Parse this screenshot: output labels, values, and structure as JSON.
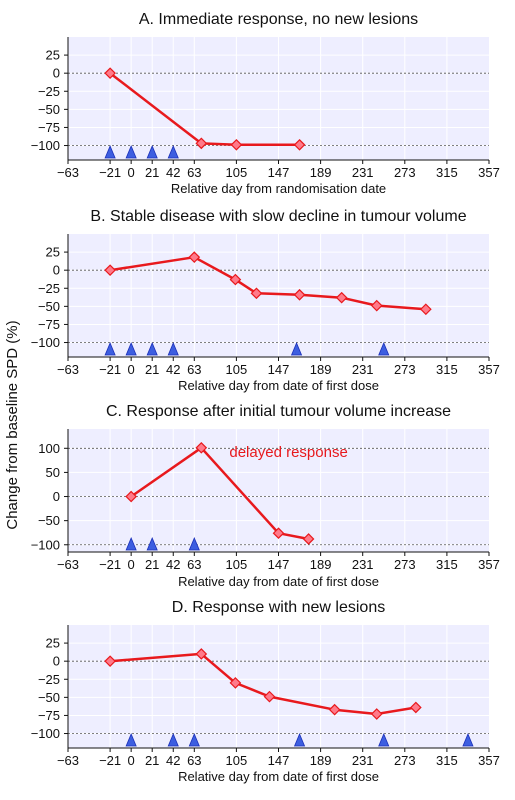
{
  "figure": {
    "ylabel": "Change from baseline SPD (%)",
    "colors": {
      "background": "#eeeeff",
      "grid": "#ffffff",
      "line": "#e8191d",
      "marker_fill": "#ff7a8a",
      "marker_edge": "#e8191d",
      "triangle_fill": "#3d5ee0",
      "triangle_edge": "#1b2fb8",
      "reference": "#555555",
      "annotation": "#e8191d"
    }
  },
  "chart_data": [
    {
      "type": "line",
      "title": "A. Immediate response, no new lesions",
      "xlabel": "Relative day from randomisation date",
      "ylabel": "",
      "xlim": [
        -63,
        357
      ],
      "ylim": [
        -120,
        50
      ],
      "xticks": [
        -63,
        -21,
        0,
        21,
        42,
        63,
        105,
        147,
        189,
        231,
        273,
        315,
        357
      ],
      "yticks": [
        25,
        0,
        -25,
        -50,
        -75,
        -100
      ],
      "reference_lines": [
        0,
        -100
      ],
      "series": [
        {
          "x": [
            -21,
            70,
            105,
            168
          ],
          "y": [
            0,
            -97,
            -99,
            -99
          ]
        }
      ],
      "triangles": [
        -21,
        0,
        21,
        42
      ],
      "annotations": []
    },
    {
      "type": "line",
      "title": "B. Stable disease with slow decline in tumour volume",
      "xlabel": "Relative day from date of first dose",
      "ylabel": "",
      "xlim": [
        -63,
        357
      ],
      "ylim": [
        -120,
        50
      ],
      "xticks": [
        -63,
        -21,
        0,
        21,
        42,
        63,
        105,
        147,
        189,
        231,
        273,
        315,
        357
      ],
      "yticks": [
        25,
        0,
        -25,
        -50,
        -75,
        -100
      ],
      "reference_lines": [
        0,
        -100
      ],
      "series": [
        {
          "x": [
            -21,
            63,
            104,
            125,
            168,
            210,
            245,
            294
          ],
          "y": [
            0,
            18,
            -13,
            -32,
            -34,
            -38,
            -49,
            -54
          ]
        }
      ],
      "triangles": [
        -21,
        0,
        21,
        42,
        165,
        252
      ],
      "annotations": []
    },
    {
      "type": "line",
      "title": "C. Response after initial tumour volume increase",
      "xlabel": "Relative day from date of first dose",
      "ylabel": "",
      "xlim": [
        -63,
        357
      ],
      "ylim": [
        -115,
        140
      ],
      "xticks": [
        -63,
        -21,
        0,
        21,
        42,
        63,
        105,
        147,
        189,
        231,
        273,
        315,
        357
      ],
      "yticks": [
        100,
        50,
        0,
        -50,
        -100
      ],
      "reference_lines": [
        100,
        0,
        -100
      ],
      "series": [
        {
          "x": [
            0,
            70,
            147,
            177
          ],
          "y": [
            0,
            101,
            -76,
            -88
          ]
        }
      ],
      "triangles": [
        0,
        21,
        63
      ],
      "annotations": [
        {
          "text": "delayed response",
          "x": 98,
          "y": 82
        }
      ]
    },
    {
      "type": "line",
      "title": "D. Response with new lesions",
      "xlabel": "Relative day from date of first dose",
      "ylabel": "",
      "xlim": [
        -63,
        357
      ],
      "ylim": [
        -120,
        50
      ],
      "xticks": [
        -63,
        -21,
        0,
        21,
        42,
        63,
        105,
        147,
        189,
        231,
        273,
        315,
        357
      ],
      "yticks": [
        25,
        0,
        -25,
        -50,
        -75,
        -100
      ],
      "reference_lines": [
        0,
        -100
      ],
      "series": [
        {
          "x": [
            -21,
            70,
            104,
            138,
            203,
            245,
            284
          ],
          "y": [
            0,
            10,
            -30,
            -49,
            -67,
            -73,
            -64
          ]
        }
      ],
      "triangles": [
        0,
        42,
        63,
        168,
        252,
        336
      ],
      "annotations": []
    }
  ]
}
